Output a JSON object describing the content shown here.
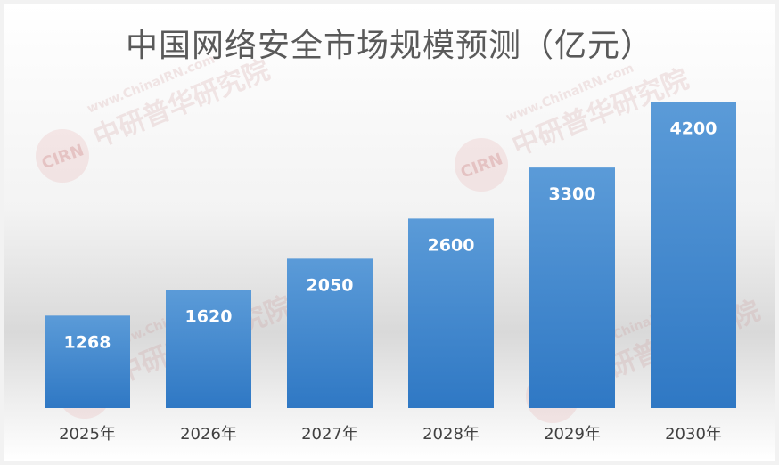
{
  "chart_data": {
    "type": "bar",
    "title": "中国网络安全市场规模预测（亿元）",
    "categories": [
      "2025年",
      "2026年",
      "2027年",
      "2028年",
      "2029年",
      "2030年"
    ],
    "values": [
      1268,
      1620,
      2050,
      2600,
      3300,
      4200
    ],
    "data_labels": [
      "1268",
      "1620",
      "2050",
      "2600",
      "3300",
      "4200"
    ],
    "xlabel": "",
    "ylabel": "",
    "ylim": [
      0,
      4500
    ],
    "grid": false,
    "legend": "none",
    "bar_color": "#3f86cf",
    "label_color": "#ffffff"
  },
  "watermark": {
    "logo_text": "CIRN",
    "site_text": "www.ChinaIRN.com",
    "org_text": "中研普华研究院"
  }
}
